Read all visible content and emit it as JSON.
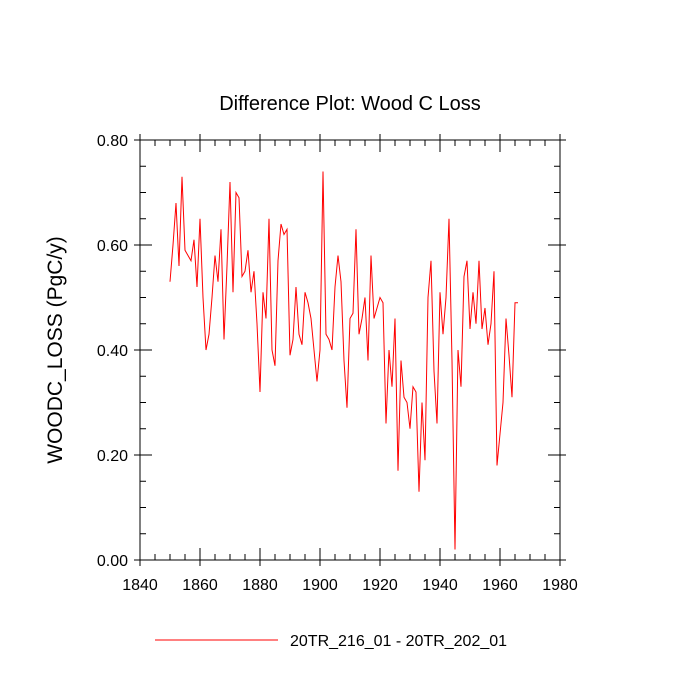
{
  "chart_data": {
    "type": "line",
    "title": "Difference Plot: Wood C Loss",
    "xlabel": "",
    "ylabel": "WOODC_LOSS  (PgC/y)",
    "xlim": [
      1840,
      1980
    ],
    "ylim": [
      0.0,
      0.8
    ],
    "x_ticks": [
      "1840",
      "1860",
      "1880",
      "1900",
      "1920",
      "1940",
      "1960",
      "1980"
    ],
    "y_ticks": [
      "0.00",
      "0.20",
      "0.40",
      "0.60",
      "0.80"
    ],
    "grid": false,
    "legend_position": "bottom-center",
    "series": [
      {
        "name": "20TR_216_01 - 20TR_202_01",
        "color": "#ff0000",
        "x": [
          1850,
          1851,
          1852,
          1853,
          1854,
          1855,
          1856,
          1857,
          1858,
          1859,
          1860,
          1861,
          1862,
          1863,
          1864,
          1865,
          1866,
          1867,
          1868,
          1869,
          1870,
          1871,
          1872,
          1873,
          1874,
          1875,
          1876,
          1877,
          1878,
          1879,
          1880,
          1881,
          1882,
          1883,
          1884,
          1885,
          1886,
          1887,
          1888,
          1889,
          1890,
          1891,
          1892,
          1893,
          1894,
          1895,
          1896,
          1897,
          1898,
          1899,
          1900,
          1901,
          1902,
          1903,
          1904,
          1905,
          1906,
          1907,
          1908,
          1909,
          1910,
          1911,
          1912,
          1913,
          1914,
          1915,
          1916,
          1917,
          1918,
          1919,
          1920,
          1921,
          1922,
          1923,
          1924,
          1925,
          1926,
          1927,
          1928,
          1929,
          1930,
          1931,
          1932,
          1933,
          1934,
          1935,
          1936,
          1937,
          1938,
          1939,
          1940,
          1941,
          1942,
          1943,
          1944,
          1945,
          1946,
          1947,
          1948,
          1949,
          1950,
          1951,
          1952,
          1953,
          1954,
          1955,
          1956,
          1957,
          1958,
          1959,
          1960,
          1961,
          1962,
          1963,
          1964,
          1965,
          1966
        ],
        "values": [
          0.53,
          0.6,
          0.68,
          0.56,
          0.73,
          0.59,
          0.58,
          0.57,
          0.61,
          0.52,
          0.65,
          0.5,
          0.4,
          0.43,
          0.5,
          0.58,
          0.53,
          0.63,
          0.42,
          0.56,
          0.72,
          0.51,
          0.7,
          0.69,
          0.54,
          0.55,
          0.59,
          0.51,
          0.55,
          0.45,
          0.32,
          0.51,
          0.46,
          0.65,
          0.4,
          0.37,
          0.57,
          0.64,
          0.62,
          0.63,
          0.39,
          0.42,
          0.52,
          0.43,
          0.41,
          0.51,
          0.49,
          0.46,
          0.4,
          0.34,
          0.4,
          0.74,
          0.43,
          0.42,
          0.4,
          0.52,
          0.58,
          0.53,
          0.38,
          0.29,
          0.46,
          0.47,
          0.63,
          0.43,
          0.46,
          0.5,
          0.38,
          0.58,
          0.46,
          0.48,
          0.5,
          0.49,
          0.26,
          0.4,
          0.33,
          0.46,
          0.17,
          0.38,
          0.31,
          0.3,
          0.25,
          0.33,
          0.32,
          0.13,
          0.3,
          0.19,
          0.5,
          0.57,
          0.36,
          0.26,
          0.51,
          0.43,
          0.5,
          0.65,
          0.38,
          0.02,
          0.4,
          0.33,
          0.54,
          0.57,
          0.44,
          0.51,
          0.45,
          0.57,
          0.44,
          0.48,
          0.41,
          0.45,
          0.55,
          0.18,
          0.24,
          0.3,
          0.46,
          0.39,
          0.31,
          0.49,
          0.49
        ]
      }
    ]
  }
}
